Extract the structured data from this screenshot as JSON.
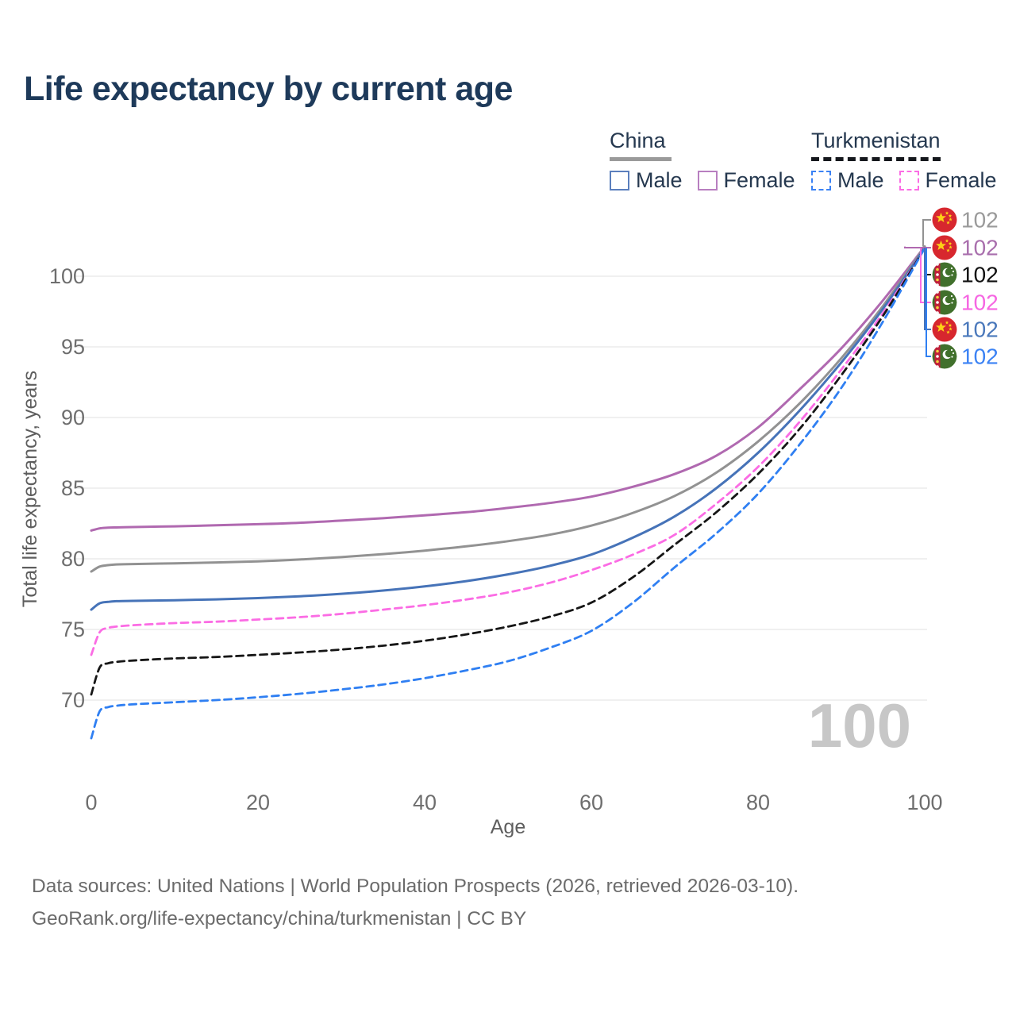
{
  "title": "Life expectancy by current age",
  "legend": {
    "china": {
      "label": "China",
      "male_label": "Male",
      "female_label": "Female",
      "line_color": "#9a9a9a",
      "male_color": "#5b7fbd",
      "female_color": "#b87fc0"
    },
    "turkmenistan": {
      "label": "Turkmenistan",
      "male_label": "Male",
      "female_label": "Female",
      "line_color": "#15181d",
      "male_color": "#3b82f4",
      "female_color": "#fb6ce4"
    }
  },
  "chart_data": {
    "type": "line",
    "xlabel": "Age",
    "ylabel": "Total life expectancy, years",
    "xticks": [
      0,
      20,
      40,
      60,
      80,
      100
    ],
    "yticks": [
      70,
      75,
      80,
      85,
      90,
      95,
      100
    ],
    "xlim": [
      0,
      100
    ],
    "ylim": [
      66,
      103
    ],
    "grid": "horizontal",
    "watermark": "100",
    "x": [
      0,
      1,
      2,
      3,
      5,
      10,
      15,
      20,
      25,
      30,
      35,
      40,
      45,
      50,
      55,
      60,
      65,
      70,
      75,
      80,
      85,
      90,
      95,
      100
    ],
    "series": [
      {
        "id": "china-female",
        "name": "China Female",
        "color": "#b069b0",
        "dash": false,
        "values": [
          82.0,
          82.15,
          82.2,
          82.22,
          82.25,
          82.3,
          82.37,
          82.45,
          82.55,
          82.7,
          82.87,
          83.08,
          83.3,
          83.6,
          83.95,
          84.4,
          85.1,
          86.0,
          87.3,
          89.3,
          92.0,
          94.9,
          98.3,
          102.1
        ]
      },
      {
        "id": "china-total",
        "name": "China",
        "color": "#929292",
        "dash": false,
        "values": [
          79.1,
          79.45,
          79.55,
          79.6,
          79.63,
          79.68,
          79.74,
          79.82,
          79.95,
          80.12,
          80.33,
          80.58,
          80.88,
          81.25,
          81.7,
          82.35,
          83.25,
          84.45,
          86.1,
          88.3,
          91.0,
          94.2,
          97.9,
          102.1
        ]
      },
      {
        "id": "china-male",
        "name": "China Male",
        "color": "#4673b8",
        "dash": false,
        "values": [
          76.4,
          76.85,
          76.95,
          77.0,
          77.02,
          77.07,
          77.13,
          77.22,
          77.35,
          77.52,
          77.75,
          78.05,
          78.42,
          78.9,
          79.5,
          80.3,
          81.5,
          83.0,
          85.0,
          87.5,
          90.5,
          93.9,
          97.7,
          102.0
        ]
      },
      {
        "id": "turkmenistan-female",
        "name": "Turkmenistan Female",
        "color": "#fb6ce4",
        "dash": true,
        "values": [
          73.2,
          74.8,
          75.1,
          75.2,
          75.3,
          75.45,
          75.55,
          75.7,
          75.87,
          76.1,
          76.4,
          76.72,
          77.12,
          77.62,
          78.3,
          79.2,
          80.3,
          81.7,
          83.9,
          86.5,
          89.7,
          93.4,
          97.4,
          102.0
        ]
      },
      {
        "id": "turkmenistan-total",
        "name": "Turkmenistan",
        "color": "#161616",
        "dash": true,
        "values": [
          70.4,
          72.3,
          72.6,
          72.7,
          72.8,
          72.95,
          73.05,
          73.2,
          73.37,
          73.58,
          73.85,
          74.2,
          74.65,
          75.2,
          75.9,
          76.9,
          78.7,
          81.0,
          83.3,
          86.0,
          89.2,
          93.0,
          97.2,
          102.0
        ]
      },
      {
        "id": "turkmenistan-male",
        "name": "Turkmenistan Male",
        "color": "#2f7ff2",
        "dash": true,
        "values": [
          67.3,
          69.2,
          69.5,
          69.6,
          69.7,
          69.85,
          70.0,
          70.2,
          70.45,
          70.75,
          71.1,
          71.55,
          72.1,
          72.75,
          73.7,
          74.9,
          76.9,
          79.4,
          81.8,
          84.6,
          88.1,
          92.1,
          96.8,
          102.0
        ]
      }
    ],
    "end_labels": [
      {
        "series": "china-total",
        "flag": "china-flag-icon",
        "value": "102",
        "color": "#9a9a9a"
      },
      {
        "series": "china-female",
        "flag": "china-flag-icon",
        "value": "102",
        "color": "#a96fad"
      },
      {
        "series": "turkmenistan-total",
        "flag": "turkmenistan-flag-icon",
        "value": "102",
        "color": "#111111"
      },
      {
        "series": "turkmenistan-female",
        "flag": "turkmenistan-flag-icon",
        "value": "102",
        "color": "#f666e2"
      },
      {
        "series": "china-male",
        "flag": "china-flag-icon",
        "value": "102",
        "color": "#4a78bb"
      },
      {
        "series": "turkmenistan-male",
        "flag": "turkmenistan-flag-icon",
        "value": "102",
        "color": "#3b82f4"
      }
    ]
  },
  "footer": {
    "line1": "Data sources: United Nations | World Population Prospects (2026, retrieved 2026-03-10).",
    "line2": "GeoRank.org/life-expectancy/china/turkmenistan | CC BY"
  }
}
